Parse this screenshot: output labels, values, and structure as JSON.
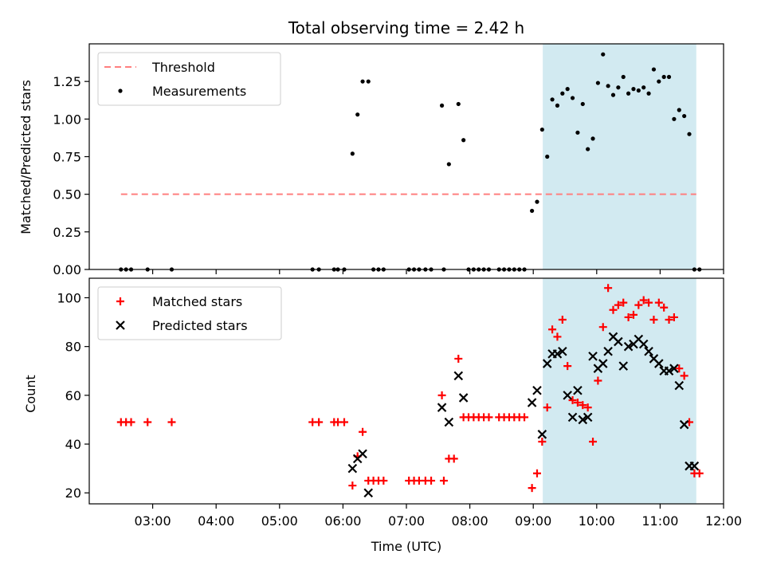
{
  "chart_data": [
    {
      "type": "scatter",
      "title": "Total observing time = 2.42 h",
      "xlabel": "",
      "ylabel": "Matched/Predicted stars",
      "x_unit": "hours (UTC)",
      "xlim": [
        2.0,
        12.0
      ],
      "ylim": [
        0.0,
        1.5
      ],
      "xticks": [
        3,
        4,
        5,
        6,
        7,
        8,
        9,
        10,
        11,
        12
      ],
      "xtick_labels": [
        "",
        "",
        "",
        "",
        "",
        "",
        "",
        "",
        "",
        ""
      ],
      "yticks": [
        0.0,
        0.25,
        0.5,
        0.75,
        1.0,
        1.25
      ],
      "ytick_labels": [
        "0.00",
        "0.25",
        "0.50",
        "0.75",
        "1.00",
        "1.25"
      ],
      "shaded_region": {
        "x": [
          9.15,
          11.57
        ],
        "color": "#add8e6"
      },
      "legend": {
        "placement": "upper-left",
        "entries": [
          "Threshold",
          "Measurements"
        ]
      },
      "series": [
        {
          "name": "Threshold",
          "kind": "dashed-line",
          "color": "#ff7f7f",
          "x": [
            2.5,
            11.57
          ],
          "y": [
            0.5,
            0.5
          ]
        },
        {
          "name": "Measurements",
          "kind": "dot",
          "color": "#000000",
          "x": [
            2.5,
            2.58,
            2.66,
            2.92,
            3.3,
            5.52,
            5.62,
            5.86,
            5.92,
            6.02,
            6.15,
            6.23,
            6.31,
            6.4,
            6.48,
            6.56,
            6.64,
            7.04,
            7.12,
            7.2,
            7.3,
            7.39,
            7.56,
            7.59,
            7.67,
            7.82,
            7.9,
            7.98,
            8.06,
            8.14,
            8.22,
            8.3,
            8.46,
            8.54,
            8.62,
            8.7,
            8.78,
            8.86,
            8.98,
            9.06,
            9.14,
            9.22,
            9.3,
            9.38,
            9.46,
            9.54,
            9.62,
            9.7,
            9.78,
            9.86,
            9.94,
            10.02,
            10.1,
            10.18,
            10.26,
            10.34,
            10.42,
            10.5,
            10.58,
            10.66,
            10.74,
            10.82,
            10.9,
            10.98,
            11.06,
            11.14,
            11.22,
            11.3,
            11.38,
            11.46,
            11.54,
            11.62
          ],
          "y": [
            0.0,
            0.0,
            0.0,
            0.0,
            0.0,
            0.0,
            0.0,
            0.0,
            0.0,
            0.0,
            0.77,
            1.03,
            1.25,
            1.25,
            0.0,
            0.0,
            0.0,
            0.0,
            0.0,
            0.0,
            0.0,
            0.0,
            1.09,
            0.0,
            0.7,
            1.1,
            0.86,
            0.0,
            0.0,
            0.0,
            0.0,
            0.0,
            0.0,
            0.0,
            0.0,
            0.0,
            0.0,
            0.0,
            0.39,
            0.45,
            0.93,
            0.75,
            1.13,
            1.09,
            1.17,
            1.2,
            1.14,
            0.91,
            1.1,
            0.8,
            0.87,
            1.24,
            1.43,
            1.22,
            1.16,
            1.21,
            1.28,
            1.17,
            1.2,
            1.19,
            1.21,
            1.17,
            1.33,
            1.25,
            1.28,
            1.28,
            1.0,
            1.06,
            1.02,
            0.9,
            0.0,
            0.0
          ]
        }
      ]
    },
    {
      "type": "scatter",
      "title": "",
      "xlabel": "Time (UTC)",
      "ylabel": "Count",
      "x_unit": "hours (UTC)",
      "xlim": [
        2.0,
        12.0
      ],
      "ylim": [
        15.5,
        108
      ],
      "xticks": [
        3,
        4,
        5,
        6,
        7,
        8,
        9,
        10,
        11,
        12
      ],
      "xtick_labels": [
        "03:00",
        "04:00",
        "05:00",
        "06:00",
        "07:00",
        "08:00",
        "09:00",
        "10:00",
        "11:00",
        "12:00"
      ],
      "yticks": [
        20,
        40,
        60,
        80,
        100
      ],
      "ytick_labels": [
        "20",
        "40",
        "60",
        "80",
        "100"
      ],
      "shaded_region": {
        "x": [
          9.15,
          11.57
        ],
        "color": "#add8e6"
      },
      "legend": {
        "placement": "upper-left",
        "entries": [
          "Matched stars",
          "Predicted stars"
        ]
      },
      "series": [
        {
          "name": "Matched stars",
          "kind": "plus",
          "color": "#ff0000",
          "x": [
            2.5,
            2.58,
            2.66,
            2.92,
            3.3,
            5.52,
            5.62,
            5.86,
            5.92,
            6.02,
            6.15,
            6.23,
            6.31,
            6.4,
            6.48,
            6.56,
            6.64,
            7.04,
            7.12,
            7.2,
            7.3,
            7.39,
            7.56,
            7.59,
            7.67,
            7.75,
            7.82,
            7.9,
            7.98,
            8.06,
            8.14,
            8.22,
            8.3,
            8.46,
            8.54,
            8.62,
            8.7,
            8.78,
            8.86,
            8.98,
            9.06,
            9.14,
            9.22,
            9.3,
            9.38,
            9.46,
            9.54,
            9.62,
            9.7,
            9.78,
            9.86,
            9.94,
            10.02,
            10.1,
            10.18,
            10.26,
            10.34,
            10.42,
            10.5,
            10.58,
            10.66,
            10.74,
            10.82,
            10.9,
            10.98,
            11.06,
            11.14,
            11.22,
            11.3,
            11.38,
            11.46,
            11.54,
            11.62
          ],
          "y": [
            49,
            49,
            49,
            49,
            49,
            49,
            49,
            49,
            49,
            49,
            23,
            35,
            45,
            25,
            25,
            25,
            25,
            25,
            25,
            25,
            25,
            25,
            60,
            25,
            34,
            34,
            75,
            51,
            51,
            51,
            51,
            51,
            51,
            51,
            51,
            51,
            51,
            51,
            51,
            22,
            28,
            41,
            55,
            87,
            84,
            91,
            72,
            58,
            57,
            56,
            55,
            41,
            66,
            88,
            104,
            95,
            97,
            98,
            92,
            93,
            97,
            99,
            98,
            91,
            98,
            96,
            91,
            92,
            71,
            68,
            49,
            28,
            28
          ]
        },
        {
          "name": "Predicted stars",
          "kind": "cross",
          "color": "#000000",
          "x": [
            6.15,
            6.23,
            6.31,
            6.4,
            7.56,
            7.67,
            7.82,
            7.9,
            8.98,
            9.06,
            9.14,
            9.22,
            9.3,
            9.38,
            9.46,
            9.54,
            9.62,
            9.7,
            9.78,
            9.86,
            9.94,
            10.02,
            10.1,
            10.18,
            10.26,
            10.34,
            10.42,
            10.5,
            10.58,
            10.66,
            10.74,
            10.82,
            10.9,
            10.98,
            11.06,
            11.14,
            11.22,
            11.3,
            11.38,
            11.46,
            11.54
          ],
          "y": [
            30,
            34,
            36,
            20,
            55,
            49,
            68,
            59,
            57,
            62,
            44,
            73,
            77,
            77,
            78,
            60,
            51,
            62,
            50,
            51,
            76,
            71,
            73,
            78,
            84,
            82,
            72,
            80,
            81,
            83,
            81,
            78,
            75,
            73,
            70,
            70,
            71,
            64,
            48,
            31,
            31
          ]
        }
      ]
    }
  ]
}
